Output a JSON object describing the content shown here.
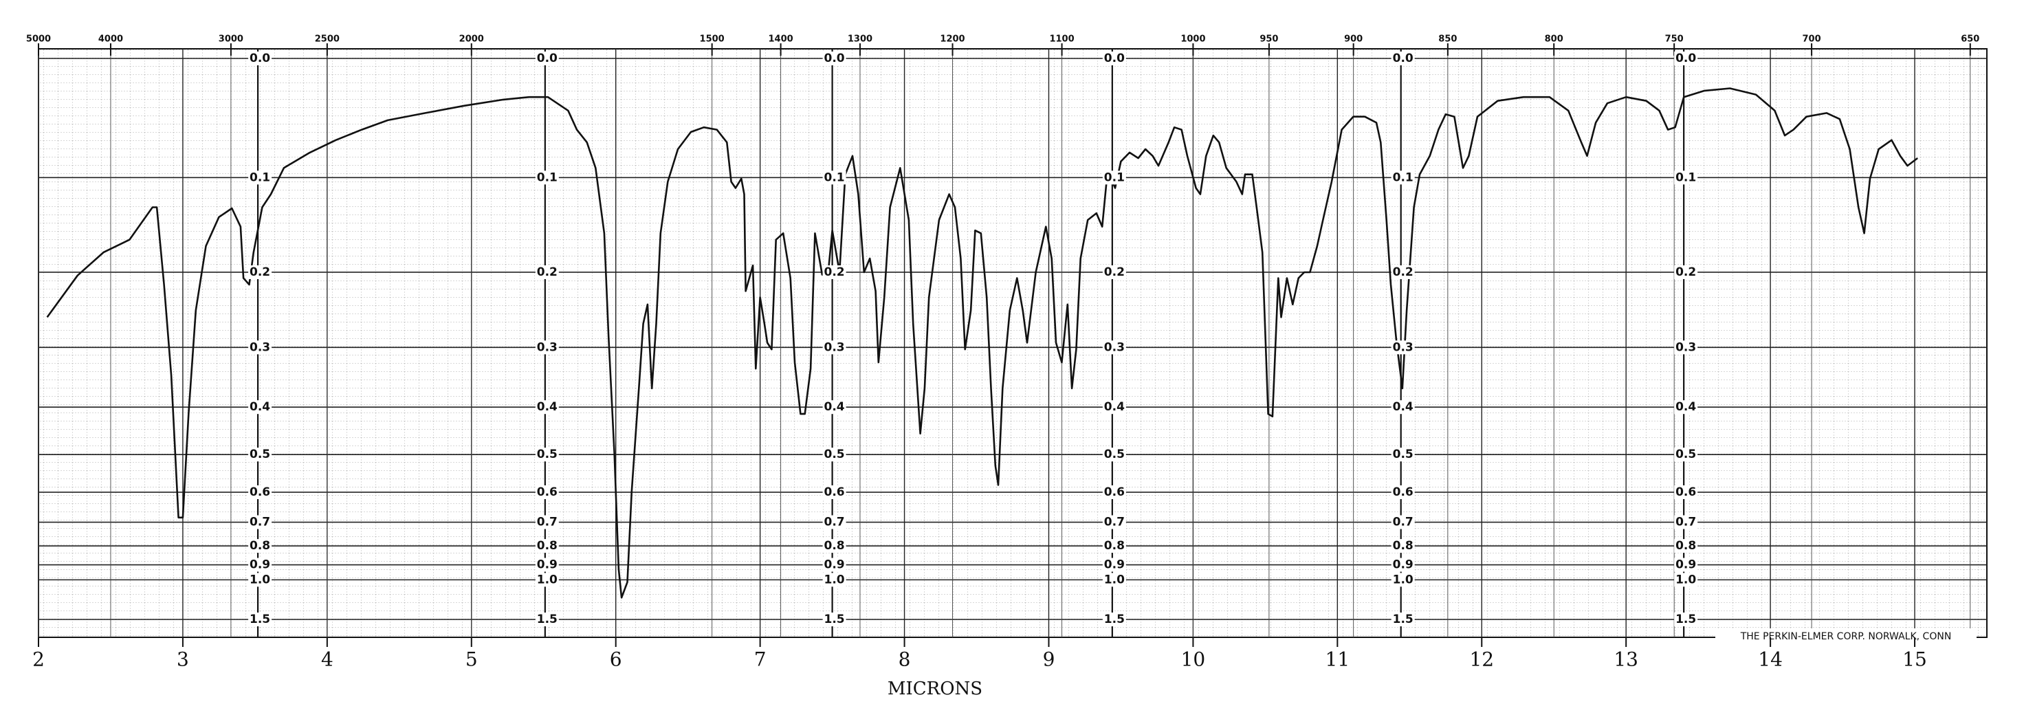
{
  "chart_data": {
    "type": "line",
    "xlabel": "MICRONS",
    "annotation": "THE PERKIN-ELMER CORP. NORWALK, CONN",
    "yscale": "absorbance",
    "x2scale": "wavenumber",
    "grid": true,
    "color": "#111111",
    "xlim": [
      2,
      15.5
    ],
    "xticks": [
      2,
      3,
      4,
      5,
      6,
      7,
      8,
      9,
      10,
      11,
      12,
      13,
      14,
      15
    ],
    "x2ticks": [
      5000,
      4000,
      3000,
      2500,
      2000,
      1500,
      1400,
      1300,
      1200,
      1100,
      1000,
      950,
      900,
      850,
      800,
      750,
      700,
      650
    ],
    "ylim": [
      0,
      1.5
    ],
    "yticks": [
      {
        "value": 0,
        "label": "0.0"
      },
      0.1,
      0.2,
      0.3,
      0.4,
      0.5,
      0.6,
      0.7,
      0.8,
      0.9,
      {
        "value": 1,
        "label": "1.0"
      },
      1.5
    ],
    "x": [
      2.06,
      2.27,
      2.45,
      2.63,
      2.79,
      2.82,
      2.87,
      2.92,
      2.97,
      3.0,
      3.04,
      3.09,
      3.16,
      3.25,
      3.34,
      3.4,
      3.42,
      3.46,
      3.49,
      3.55,
      3.61,
      3.7,
      3.88,
      4.06,
      4.24,
      4.42,
      4.68,
      4.95,
      5.22,
      5.4,
      5.53,
      5.67,
      5.73,
      5.8,
      5.86,
      5.92,
      5.95,
      5.99,
      6.02,
      6.04,
      6.08,
      6.11,
      6.16,
      6.19,
      6.22,
      6.25,
      6.28,
      6.31,
      6.36,
      6.43,
      6.52,
      6.61,
      6.7,
      6.77,
      6.8,
      6.83,
      6.87,
      6.89,
      6.9,
      6.95,
      6.97,
      7.0,
      7.03,
      7.05,
      7.08,
      7.11,
      7.16,
      7.21,
      7.24,
      7.28,
      7.31,
      7.35,
      7.38,
      7.43,
      7.47,
      7.5,
      7.55,
      7.59,
      7.64,
      7.68,
      7.72,
      7.76,
      7.8,
      7.82,
      7.86,
      7.9,
      7.97,
      8.03,
      8.06,
      8.11,
      8.14,
      8.17,
      8.24,
      8.31,
      8.35,
      8.39,
      8.42,
      8.46,
      8.49,
      8.53,
      8.57,
      8.6,
      8.63,
      8.65,
      8.68,
      8.73,
      8.78,
      8.82,
      8.85,
      8.91,
      8.98,
      9.02,
      9.05,
      9.09,
      9.13,
      9.16,
      9.19,
      9.22,
      9.27,
      9.33,
      9.37,
      9.4,
      9.42,
      9.46,
      9.5,
      9.56,
      9.62,
      9.67,
      9.72,
      9.76,
      9.83,
      9.87,
      9.92,
      9.96,
      10.02,
      10.05,
      10.09,
      10.14,
      10.18,
      10.23,
      10.3,
      10.34,
      10.36,
      10.41,
      10.44,
      10.48,
      10.52,
      10.55,
      10.59,
      10.61,
      10.65,
      10.69,
      10.73,
      10.77,
      10.81,
      10.86,
      10.9,
      10.96,
      11.03,
      11.11,
      11.19,
      11.27,
      11.3,
      11.34,
      11.37,
      11.41,
      11.45,
      11.48,
      11.53,
      11.57,
      11.64,
      11.7,
      11.75,
      11.81,
      11.87,
      11.91,
      11.97,
      12.11,
      12.29,
      12.47,
      12.6,
      12.69,
      12.73,
      12.79,
      12.87,
      13.0,
      13.14,
      13.23,
      13.29,
      13.34,
      13.4,
      13.54,
      13.72,
      13.9,
      14.03,
      14.1,
      14.16,
      14.25,
      14.39,
      14.48,
      14.55,
      14.61,
      14.65,
      14.69,
      14.75,
      14.84,
      14.9,
      14.95,
      15.02
    ],
    "values": [
      0.257,
      0.204,
      0.177,
      0.163,
      0.129,
      0.129,
      0.215,
      0.344,
      0.683,
      0.683,
      0.413,
      0.248,
      0.17,
      0.139,
      0.13,
      0.149,
      0.207,
      0.215,
      0.177,
      0.129,
      0.116,
      0.091,
      0.077,
      0.066,
      0.057,
      0.049,
      0.043,
      0.037,
      0.032,
      0.03,
      0.03,
      0.041,
      0.057,
      0.068,
      0.091,
      0.156,
      0.284,
      0.496,
      0.927,
      1.16,
      1.018,
      0.598,
      0.366,
      0.266,
      0.24,
      0.366,
      0.266,
      0.156,
      0.104,
      0.074,
      0.059,
      0.055,
      0.057,
      0.068,
      0.104,
      0.11,
      0.101,
      0.116,
      0.223,
      0.192,
      0.333,
      0.231,
      0.266,
      0.293,
      0.303,
      0.163,
      0.156,
      0.207,
      0.323,
      0.413,
      0.413,
      0.333,
      0.156,
      0.203,
      0.203,
      0.153,
      0.2,
      0.097,
      0.08,
      0.116,
      0.2,
      0.184,
      0.223,
      0.323,
      0.231,
      0.129,
      0.091,
      0.142,
      0.266,
      0.453,
      0.366,
      0.231,
      0.142,
      0.116,
      0.129,
      0.184,
      0.303,
      0.248,
      0.153,
      0.156,
      0.231,
      0.366,
      0.527,
      0.579,
      0.366,
      0.248,
      0.207,
      0.248,
      0.293,
      0.2,
      0.149,
      0.184,
      0.293,
      0.323,
      0.24,
      0.366,
      0.303,
      0.184,
      0.142,
      0.135,
      0.149,
      0.104,
      0.097,
      0.11,
      0.085,
      0.077,
      0.082,
      0.074,
      0.08,
      0.089,
      0.068,
      0.055,
      0.057,
      0.08,
      0.11,
      0.116,
      0.08,
      0.062,
      0.068,
      0.091,
      0.104,
      0.116,
      0.097,
      0.097,
      0.129,
      0.177,
      0.413,
      0.418,
      0.207,
      0.257,
      0.207,
      0.24,
      0.207,
      0.2,
      0.2,
      0.17,
      0.142,
      0.104,
      0.057,
      0.046,
      0.046,
      0.051,
      0.068,
      0.142,
      0.215,
      0.293,
      0.366,
      0.248,
      0.129,
      0.097,
      0.08,
      0.057,
      0.044,
      0.046,
      0.091,
      0.08,
      0.046,
      0.033,
      0.03,
      0.03,
      0.041,
      0.068,
      0.08,
      0.051,
      0.035,
      0.03,
      0.033,
      0.041,
      0.057,
      0.055,
      0.03,
      0.025,
      0.023,
      0.028,
      0.041,
      0.062,
      0.057,
      0.046,
      0.043,
      0.048,
      0.074,
      0.129,
      0.156,
      0.101,
      0.074,
      0.066,
      0.08,
      0.089,
      0.082
    ]
  }
}
